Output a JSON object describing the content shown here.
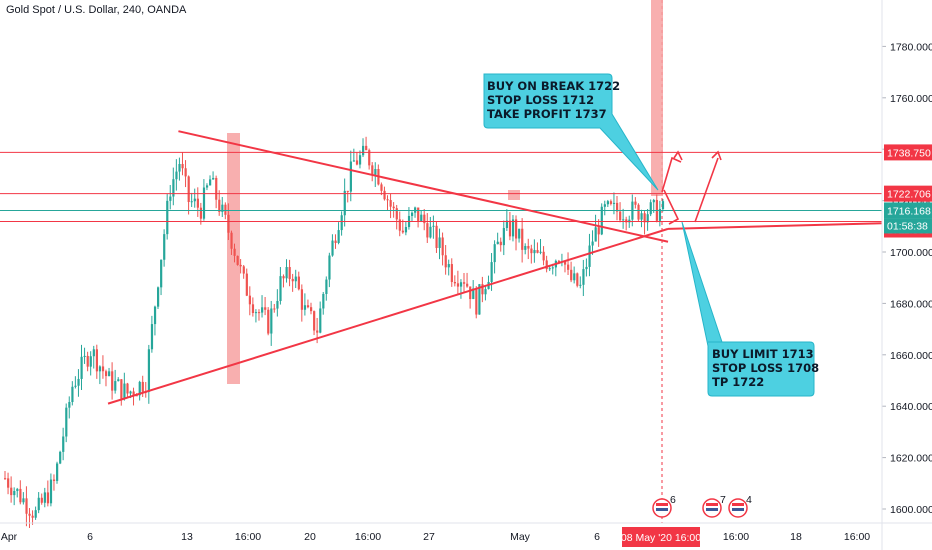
{
  "header": {
    "title": "Gold Spot / U.S. Dollar, 240, OANDA"
  },
  "colors": {
    "up": "#26a69a",
    "down": "#ef5350",
    "trendline": "#f23645",
    "level": "#f23645",
    "current": "#26a69a",
    "callout": "#4dd0e1",
    "highlight": "#f7a1a1"
  },
  "chart_data": {
    "type": "candlestick",
    "y_axis": {
      "ylim": [
        1595,
        1900
      ],
      "ticks": [
        1600,
        1620,
        1640,
        1660,
        1680,
        1700,
        1720,
        1740,
        1760,
        1780
      ],
      "tick_labels": [
        "1600.000",
        "1620.000",
        "1640.000",
        "1660.000",
        "1680.000",
        "1700.000",
        "1720.000",
        "1740.000",
        "1760.000",
        "1780.000"
      ]
    },
    "x_axis": {
      "labels": [
        "Apr",
        "6",
        "13",
        "16:00",
        "20",
        "16:00",
        "27",
        "May",
        "6",
        "16:00",
        "18",
        "16:00"
      ],
      "cursor_label": "08 May '20   16:00"
    },
    "levels": [
      {
        "name": "take-profit",
        "value": 1738.75,
        "label": "1738.750"
      },
      {
        "name": "breakout",
        "value": 1722.706,
        "label": "1722.706"
      },
      {
        "name": "current",
        "value": 1716.168,
        "label": "1716.168",
        "countdown": "01:58:38"
      },
      {
        "name": "support",
        "value": 1711.865,
        "label": "1711.865"
      }
    ],
    "trendlines": [
      {
        "name": "upper",
        "from": {
          "bar": 57,
          "price": 1747
        },
        "to": {
          "bar": 217,
          "price": 1704
        }
      },
      {
        "name": "lower",
        "from": {
          "bar": 34,
          "price": 1641
        },
        "to": {
          "bar": 217,
          "price": 1709
        }
      }
    ],
    "annotations": {
      "buy_break": "BUY ON BREAK 1722\nSTOP LOSS 1712\nTAKE PROFIT 1737",
      "buy_limit": "BUY LIMIT 1713\nSTOP LOSS 1708\nTP 1722"
    },
    "event_counts": [
      "6",
      "7",
      "4"
    ],
    "seed_points": [
      [
        0,
        1612
      ],
      [
        10,
        1598
      ],
      [
        16,
        1610
      ],
      [
        22,
        1648
      ],
      [
        28,
        1662
      ],
      [
        34,
        1650
      ],
      [
        40,
        1645
      ],
      [
        46,
        1650
      ],
      [
        50,
        1690
      ],
      [
        54,
        1725
      ],
      [
        57,
        1735
      ],
      [
        60,
        1720
      ],
      [
        64,
        1717
      ],
      [
        67,
        1728
      ],
      [
        70,
        1718
      ],
      [
        74,
        1705
      ],
      [
        78,
        1688
      ],
      [
        82,
        1678
      ],
      [
        86,
        1672
      ],
      [
        90,
        1688
      ],
      [
        94,
        1692
      ],
      [
        98,
        1677
      ],
      [
        102,
        1670
      ],
      [
        106,
        1698
      ],
      [
        110,
        1718
      ],
      [
        114,
        1735
      ],
      [
        118,
        1738
      ],
      [
        122,
        1730
      ],
      [
        126,
        1718
      ],
      [
        130,
        1708
      ],
      [
        134,
        1715
      ],
      [
        138,
        1710
      ],
      [
        142,
        1702
      ],
      [
        146,
        1692
      ],
      [
        150,
        1690
      ],
      [
        154,
        1680
      ],
      [
        158,
        1692
      ],
      [
        162,
        1706
      ],
      [
        166,
        1710
      ],
      [
        170,
        1700
      ],
      [
        174,
        1698
      ],
      [
        178,
        1696
      ],
      [
        182,
        1700
      ],
      [
        184,
        1690
      ],
      [
        188,
        1686
      ],
      [
        192,
        1705
      ],
      [
        196,
        1716
      ],
      [
        200,
        1716
      ]
    ]
  }
}
